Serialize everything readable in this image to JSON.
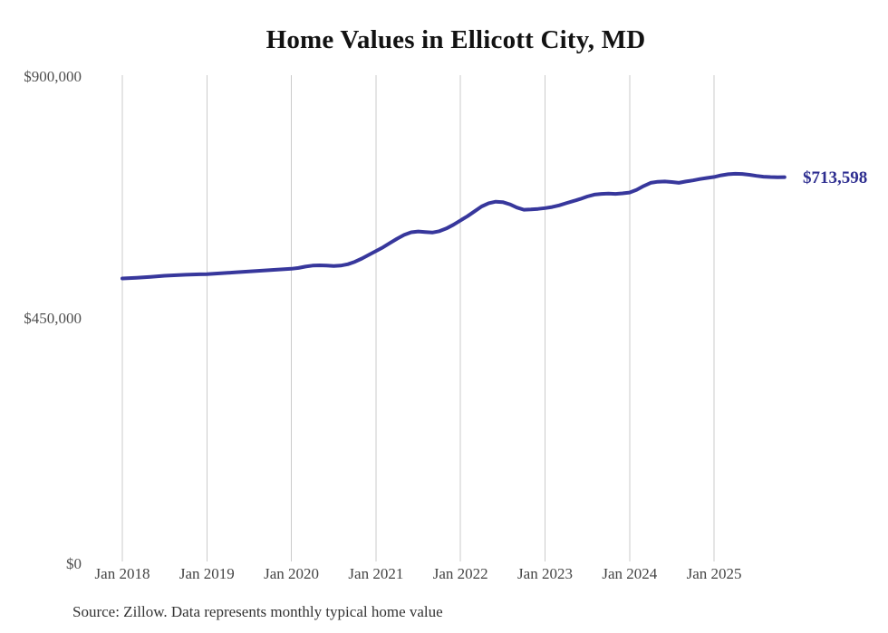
{
  "chart_data": {
    "type": "line",
    "title": "Home Values in Ellicott City, MD",
    "subtitle": "",
    "xlabel": "",
    "ylabel": "",
    "ylim": [
      0,
      900000
    ],
    "y_ticks": [
      {
        "value": 0,
        "label": "$0"
      },
      {
        "value": 450000,
        "label": "$450,000"
      },
      {
        "value": 900000,
        "label": "$900,000"
      }
    ],
    "x_ticks": [
      "Jan 2018",
      "Jan 2019",
      "Jan 2020",
      "Jan 2021",
      "Jan 2022",
      "Jan 2023",
      "Jan 2024",
      "Jan 2025"
    ],
    "grid": "vertical-only",
    "gridline_color": "#cbcbcb",
    "legend_position": "none",
    "x_start": "Jan 2018",
    "x_end": "Nov 2025",
    "x_interval": "monthly",
    "series": [
      {
        "name": "Monthly typical home value",
        "color": "#37379c",
        "values": [
          525000,
          525700,
          526400,
          527200,
          528100,
          529000,
          530000,
          530700,
          531300,
          531900,
          532400,
          532700,
          533000,
          533800,
          534600,
          535400,
          536300,
          537200,
          538000,
          538800,
          539700,
          540600,
          541500,
          542300,
          543000,
          544500,
          547000,
          549000,
          549500,
          549000,
          548200,
          549000,
          551500,
          556000,
          562000,
          569000,
          576000,
          583000,
          591000,
          599000,
          606000,
          611000,
          612500,
          611500,
          610500,
          613000,
          618000,
          625000,
          633000,
          641000,
          650000,
          659000,
          665000,
          668000,
          667000,
          663000,
          657000,
          653000,
          653500,
          654500,
          656000,
          658000,
          661000,
          665000,
          669000,
          673000,
          677500,
          681000,
          682500,
          683000,
          682500,
          683500,
          685000,
          690000,
          697000,
          703000,
          705000,
          705500,
          704500,
          703000,
          705500,
          707500,
          710000,
          712000,
          714000,
          717000,
          719000,
          719800,
          719500,
          718000,
          716000,
          714500,
          713800,
          713500,
          713598
        ]
      }
    ],
    "end_label": "$713,598",
    "source_note": "Source: Zillow. Data represents monthly typical home value"
  }
}
